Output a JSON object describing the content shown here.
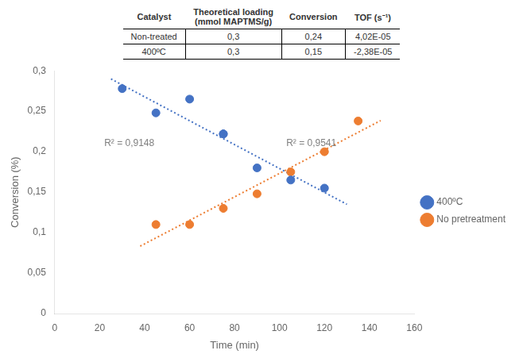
{
  "chart_data": {
    "type": "scatter",
    "xlabel": "Time (min)",
    "ylabel": "Conversion (%)",
    "xlim": [
      0,
      160
    ],
    "ylim": [
      0,
      0.3
    ],
    "xticks": [
      0,
      20,
      40,
      60,
      80,
      100,
      120,
      140,
      160
    ],
    "yticks": [
      0,
      {
        "value": 0.05,
        "label": "0,05"
      },
      {
        "value": 0.1,
        "label": "0,1"
      },
      {
        "value": 0.15,
        "label": "0,15"
      },
      {
        "value": 0.2,
        "label": "0,2"
      },
      {
        "value": 0.25,
        "label": "0,25"
      },
      {
        "value": 0.3,
        "label": "0,3"
      }
    ],
    "grid": false,
    "legend": "right",
    "series": [
      {
        "name": "400ºC",
        "color": "#4472C4",
        "marker": "circle",
        "x": [
          30,
          45,
          60,
          75,
          75,
          90,
          105,
          120
        ],
        "values": [
          0.278,
          0.248,
          0.265,
          0.222,
          0.222,
          0.18,
          0.165,
          0.155
        ]
      },
      {
        "name": "No pretreatment",
        "color": "#ED7D31",
        "marker": "circle",
        "x": [
          45,
          60,
          75,
          90,
          105,
          120,
          135
        ],
        "values": [
          0.11,
          0.11,
          0.13,
          0.148,
          0.175,
          0.2,
          0.238
        ]
      },
      {
        "type": "line",
        "line_style": "dotted",
        "color": "#4472C4",
        "x": [
          25,
          130
        ],
        "values": [
          0.28995,
          0.13495
        ]
      },
      {
        "type": "line",
        "line_style": "dotted",
        "color": "#ED7D31",
        "x": [
          38,
          145
        ],
        "values": [
          0.08331,
          0.23846
        ]
      }
    ],
    "annotations": [
      {
        "text": "R² = 0,9148",
        "x": 22,
        "y": 0.204
      },
      {
        "text": "R² = 0,9541",
        "x": 103,
        "y": 0.204
      }
    ],
    "table": {
      "columns": [
        "Catalyst",
        "Theoretical loading\n(mmol MAPTMS/g)",
        "Conversion",
        "TOF (s⁻¹)"
      ],
      "rows": [
        [
          "Non-treated",
          "0,3",
          "0,24",
          "4,02E-05"
        ],
        [
          "400ºC",
          "0,3",
          "0,15",
          "-2,38E-05"
        ]
      ]
    }
  }
}
